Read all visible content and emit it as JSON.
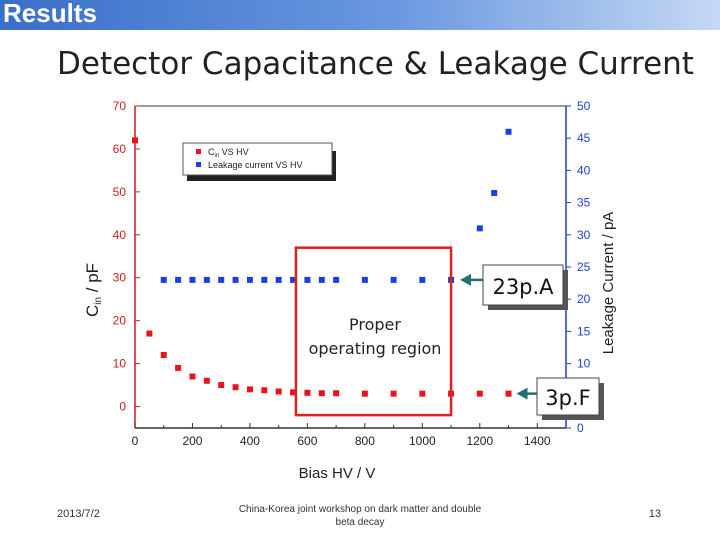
{
  "header": {
    "title": "Results"
  },
  "slide": {
    "title": "Detector Capacitance & Leakage Current",
    "footer_date": "2013/7/2",
    "footer_note": "China-Korea joint workshop on dark matter and double beta decay",
    "page_number": "13"
  },
  "chart_data": {
    "type": "scatter",
    "xlabel": "Bias HV / V",
    "ylabel_left_main": "C",
    "ylabel_left_sub": "in",
    "ylabel_left_rest": " / pF",
    "ylabel_right": "Leakage Current / pA",
    "xlim": [
      0,
      1500
    ],
    "ylim_left": [
      -5,
      70
    ],
    "ylim_right": [
      0,
      50
    ],
    "x_ticks": [
      "0",
      "200",
      "400",
      "600",
      "800",
      "1000",
      "1200",
      "1400"
    ],
    "y_left_ticks": [
      "0",
      "10",
      "20",
      "30",
      "40",
      "50",
      "60",
      "70"
    ],
    "y_right_ticks": [
      "0",
      "5",
      "10",
      "15",
      "20",
      "25",
      "30",
      "35",
      "40",
      "45",
      "50"
    ],
    "legend": [
      {
        "main": "C",
        "sub": "in",
        "rest": " VS HV"
      },
      {
        "main": "Leakage current VS HV",
        "sub": "",
        "rest": ""
      }
    ],
    "colors": {
      "capacitance": "#e8141c",
      "leakage": "#1a3fe0",
      "left_axis": "#cc1e1e",
      "right_axis": "#1f3fd4",
      "annotation_box": "#dd2020",
      "arrow": "#1f6e74"
    },
    "series": [
      {
        "name": "Cin VS HV",
        "axis": "left",
        "x": [
          0,
          50,
          100,
          150,
          200,
          250,
          300,
          350,
          400,
          450,
          500,
          550,
          600,
          650,
          700,
          800,
          900,
          1000,
          1100,
          1200,
          1300
        ],
        "y": [
          62,
          17,
          12,
          9,
          7,
          6,
          5,
          4.5,
          4,
          3.8,
          3.5,
          3.3,
          3.2,
          3.1,
          3.1,
          3.0,
          3.0,
          3.0,
          3.0,
          3.0,
          3.0
        ]
      },
      {
        "name": "Leakage current VS HV",
        "axis": "right",
        "x": [
          100,
          150,
          200,
          250,
          300,
          350,
          400,
          450,
          500,
          550,
          600,
          650,
          700,
          800,
          900,
          1000,
          1100,
          1200,
          1250,
          1300
        ],
        "y": [
          23,
          23,
          23,
          23,
          23,
          23,
          23,
          23,
          23,
          23,
          23,
          23,
          23,
          23,
          23,
          23,
          23,
          31,
          36.5,
          46
        ]
      }
    ],
    "annotations": {
      "region_label_line1": "Proper",
      "region_label_line2": "operating region",
      "region_x": [
        560,
        1100
      ],
      "region_y_left": [
        -2,
        37
      ],
      "leakage_callout": "23p.A",
      "leakage_callout_at": [
        1100,
        23
      ],
      "cap_callout": "3p.F",
      "cap_callout_at": [
        1300,
        3
      ]
    }
  }
}
